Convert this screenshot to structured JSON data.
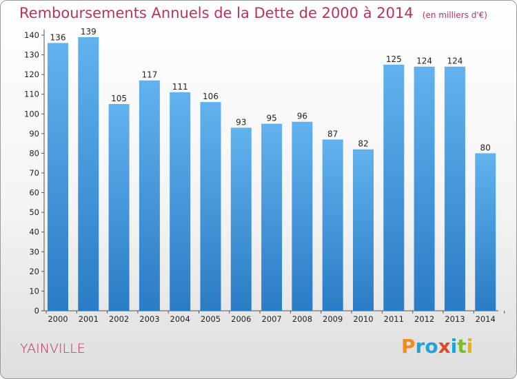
{
  "chart_data": {
    "type": "bar",
    "title": "Remboursements Annuels de la Dette de 2000 à 2014",
    "unit_note": "(en milliers d'€)",
    "categories": [
      "2000",
      "2001",
      "2002",
      "2003",
      "2004",
      "2005",
      "2006",
      "2007",
      "2008",
      "2009",
      "2010",
      "2011",
      "2012",
      "2013",
      "2014"
    ],
    "values": [
      136,
      139,
      105,
      117,
      111,
      106,
      93,
      95,
      96,
      87,
      82,
      125,
      124,
      124,
      80
    ],
    "ylim": [
      0,
      140
    ],
    "yticks": [
      0,
      10,
      20,
      30,
      40,
      50,
      60,
      70,
      80,
      90,
      100,
      110,
      120,
      130,
      140
    ],
    "xlabel": "",
    "ylabel": "",
    "grid": false,
    "bar_color": "#3d92dd",
    "accent_color": "#c0305d"
  },
  "city": "YAINVILLE",
  "logo": {
    "letters": [
      "P",
      "r",
      "o",
      "x",
      "i",
      "t",
      "i"
    ],
    "colors": [
      "#f28a1c",
      "#1fa3d9",
      "#1fa3d9",
      "#e04a2a",
      "#1fa3d9",
      "#7cbc2f",
      "#f0b000"
    ]
  }
}
